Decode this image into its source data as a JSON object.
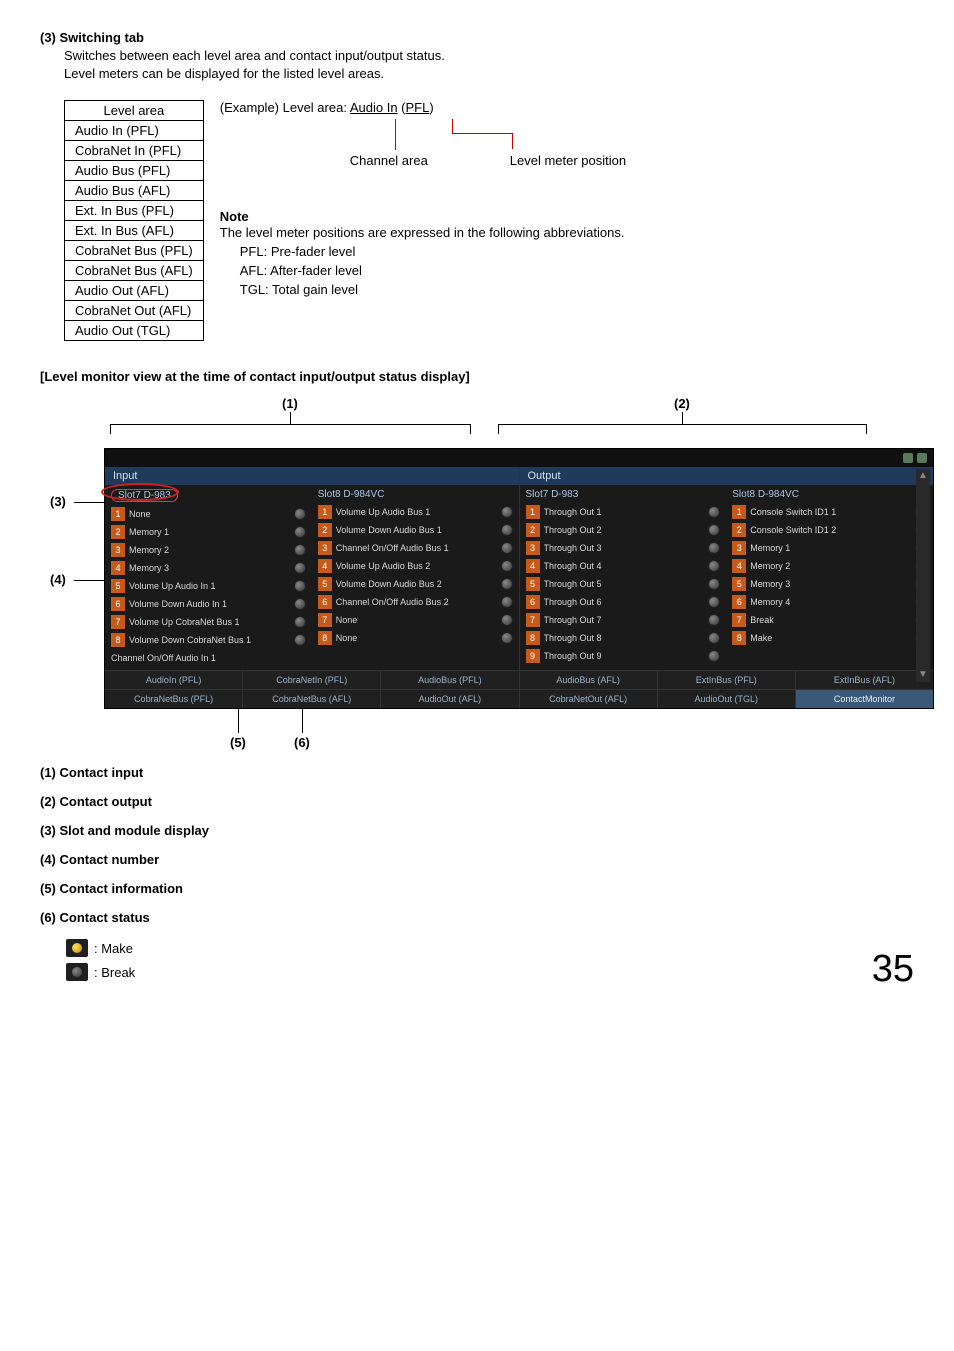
{
  "section3": {
    "heading": "(3) Switching tab",
    "line1": "Switches between each level area and contact input/output status.",
    "line2": "Level meters can be displayed for the listed level areas."
  },
  "level_table": {
    "header": "Level area",
    "rows": [
      "Audio In (PFL)",
      "CobraNet In (PFL)",
      "Audio Bus (PFL)",
      "Audio Bus (AFL)",
      "Ext. In Bus (PFL)",
      "Ext. In Bus (AFL)",
      "CobraNet Bus (PFL)",
      "CobraNet Bus (AFL)",
      "Audio Out (AFL)",
      "CobraNet Out (AFL)",
      "Audio Out (TGL)"
    ]
  },
  "example": {
    "prefix": "(Example) Level area: ",
    "chan": "Audio In",
    "pos_open": " (",
    "pos": "PFL",
    "pos_close": ")",
    "label_channel": "Channel area",
    "label_pos": "Level meter position"
  },
  "note": {
    "head": "Note",
    "body": "The level meter positions are expressed in the following abbreviations.",
    "l1": "PFL: Pre-fader level",
    "l2": "AFL: After-fader level",
    "l3": "TGL: Total gain level"
  },
  "heading2": "[Level monitor view at the time of contact input/output status display]",
  "ann": {
    "a1": "(1)",
    "a2": "(2)",
    "a3": "(3)",
    "a4": "(4)",
    "a5": "(5)",
    "a6": "(6)"
  },
  "ui": {
    "input_header": "Input",
    "output_header": "Output",
    "input_slot1_title": "Slot7  D-983",
    "input_slot2_title": "Slot8  D-984VC",
    "output_slot1_title": "Slot7  D-983",
    "output_slot2_title": "Slot8  D-984VC",
    "input_slot1_rows": [
      {
        "n": "1",
        "label": "None",
        "on": false
      },
      {
        "n": "2",
        "label": "Memory 1",
        "on": false
      },
      {
        "n": "3",
        "label": "Memory 2",
        "on": false
      },
      {
        "n": "4",
        "label": "Memory 3",
        "on": false
      },
      {
        "n": "5",
        "label": "Volume Up  Audio In  1",
        "on": false
      },
      {
        "n": "6",
        "label": "Volume Down  Audio In  1",
        "on": false
      },
      {
        "n": "7",
        "label": "Volume Up  CobraNet Bus  1",
        "on": false
      },
      {
        "n": "8",
        "label": "Volume Down  CobraNet Bus  1",
        "on": false
      }
    ],
    "input_slot1_extra": "Channel On/Off  Audio In  1",
    "input_slot2_rows": [
      {
        "n": "1",
        "label": "Volume Up  Audio Bus  1",
        "on": false
      },
      {
        "n": "2",
        "label": "Volume Down  Audio Bus  1",
        "on": false
      },
      {
        "n": "3",
        "label": "Channel On/Off  Audio Bus  1",
        "on": false
      },
      {
        "n": "4",
        "label": "Volume Up  Audio Bus  2",
        "on": false
      },
      {
        "n": "5",
        "label": "Volume Down  Audio Bus  2",
        "on": false
      },
      {
        "n": "6",
        "label": "Channel On/Off  Audio Bus  2",
        "on": false
      },
      {
        "n": "7",
        "label": "None",
        "on": false
      },
      {
        "n": "8",
        "label": "None",
        "on": false
      }
    ],
    "output_slot1_rows": [
      {
        "n": "1",
        "label": "Through Out 1",
        "on": false
      },
      {
        "n": "2",
        "label": "Through Out 2",
        "on": false
      },
      {
        "n": "3",
        "label": "Through Out 3",
        "on": false
      },
      {
        "n": "4",
        "label": "Through Out 4",
        "on": false
      },
      {
        "n": "5",
        "label": "Through Out 5",
        "on": false
      },
      {
        "n": "6",
        "label": "Through Out 6",
        "on": false
      },
      {
        "n": "7",
        "label": "Through Out 7",
        "on": false
      },
      {
        "n": "8",
        "label": "Through Out 8",
        "on": false
      }
    ],
    "output_slot1_extra": {
      "n": "9",
      "label": "Through Out 9",
      "on": false
    },
    "output_slot2_rows": [
      {
        "n": "1",
        "label": "Console Switch  ID1  1",
        "on": false
      },
      {
        "n": "2",
        "label": "Console Switch  ID1  2",
        "on": false
      },
      {
        "n": "3",
        "label": "Memory 1",
        "on": false
      },
      {
        "n": "4",
        "label": "Memory 2",
        "on": false
      },
      {
        "n": "5",
        "label": "Memory 3",
        "on": false
      },
      {
        "n": "6",
        "label": "Memory 4",
        "on": true
      },
      {
        "n": "7",
        "label": "Break",
        "on": false
      },
      {
        "n": "8",
        "label": "Make",
        "on": true
      }
    ],
    "tabs_top": [
      "AudioIn (PFL)",
      "CobraNetIn (PFL)",
      "AudioBus (PFL)",
      "AudioBus (AFL)",
      "ExtInBus (PFL)",
      "ExtInBus (AFL)"
    ],
    "tabs_bottom": [
      "CobraNetBus (PFL)",
      "CobraNetBus (AFL)",
      "AudioOut (AFL)",
      "CobraNetOut (AFL)",
      "AudioOut (TGL)",
      "ContactMonitor"
    ]
  },
  "legend": {
    "i1": "(1) Contact input",
    "i2": "(2) Contact output",
    "i3": "(3) Slot and module display",
    "i4": "(4) Contact number",
    "i5": "(5) Contact information",
    "i6": "(6) Contact status",
    "make": ":  Make",
    "break": ":  Break"
  },
  "page_number": "35"
}
